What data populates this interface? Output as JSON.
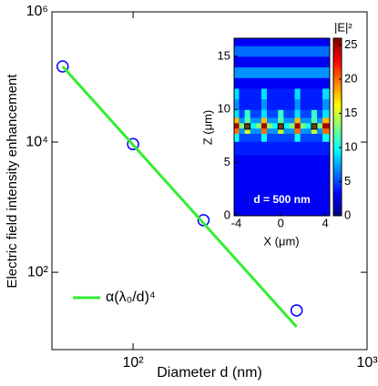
{
  "chart_data": [
    {
      "type": "scatter",
      "xlabel": "Diameter d (nm)",
      "ylabel": "Electric field intensity enhancement",
      "xscale": "log",
      "yscale": "log",
      "xlim": [
        45,
        1000
      ],
      "ylim": [
        6.5,
        1000000
      ],
      "xticks": [
        {
          "value": 100,
          "label": "10²"
        },
        {
          "value": 1000,
          "label": "10³"
        }
      ],
      "yticks": [
        {
          "value": 100,
          "label": "10²"
        },
        {
          "value": 10000,
          "label": "10⁴"
        },
        {
          "value": 1000000,
          "label": "10⁶"
        }
      ],
      "legend": "lower left",
      "series": [
        {
          "color": "#0000ff",
          "marker": "circle",
          "x": [
            50,
            100,
            200,
            500
          ],
          "values": [
            145000,
            9300,
            630,
            26
          ]
        },
        {
          "name": "α(λ₀/d)⁴",
          "color": "#33ee33",
          "line": true,
          "x": [
            50,
            500
          ],
          "values": [
            145000,
            14.5
          ]
        }
      ]
    },
    {
      "type": "heatmap",
      "annotation": "d = 500 nm",
      "xlabel": "X (μm)",
      "ylabel": "Z (μm)",
      "colorbar_label": "|E|²",
      "colormap": "jet",
      "xlim": [
        -4.2,
        4.4
      ],
      "ylim": [
        0,
        16.7
      ],
      "xticks": [
        -4,
        0,
        4
      ],
      "yticks": [
        0,
        5,
        10,
        15
      ],
      "clim": [
        0,
        26
      ],
      "cticks": [
        0,
        5,
        10,
        15,
        20,
        25
      ],
      "particles_x": [
        -3,
        0,
        3
      ],
      "particles_y": [
        8.4,
        8.4,
        8.4
      ],
      "x": [
        -4,
        -3.5,
        -3,
        -2.5,
        -2,
        -1.5,
        -1,
        -0.5,
        0,
        0.5,
        1,
        1.5,
        2,
        2.5,
        3,
        3.5,
        4
      ],
      "y": [
        1,
        3,
        5,
        6.5,
        7.5,
        8,
        8.5,
        9,
        9.5,
        10.5,
        11.5,
        12.5,
        13.5,
        14.5,
        15.5,
        16.5
      ],
      "values": [
        [
          3,
          3,
          3,
          3,
          3,
          3,
          3,
          3,
          3,
          3,
          3,
          3,
          3,
          3,
          3,
          3,
          3
        ],
        [
          3,
          3,
          3,
          3,
          3,
          3,
          3,
          3,
          3,
          3,
          3,
          3,
          3,
          3,
          3,
          3,
          3
        ],
        [
          3,
          3,
          3,
          3,
          3,
          3,
          3,
          3,
          3,
          3,
          3,
          3,
          3,
          3,
          3,
          3,
          3
        ],
        [
          4,
          4,
          4,
          4,
          4,
          4,
          4,
          4,
          4,
          4,
          4,
          4,
          4,
          4,
          4,
          4,
          4
        ],
        [
          10,
          5,
          5,
          5,
          5,
          10,
          5,
          5,
          5,
          5,
          5,
          10,
          5,
          5,
          5,
          5,
          10
        ],
        [
          20,
          7,
          15,
          7,
          7,
          20,
          7,
          7,
          15,
          7,
          7,
          20,
          7,
          7,
          15,
          7,
          20
        ],
        [
          25,
          13,
          22,
          10,
          13,
          25,
          13,
          10,
          22,
          10,
          13,
          25,
          13,
          10,
          22,
          13,
          25
        ],
        [
          18,
          7,
          12,
          7,
          7,
          18,
          7,
          7,
          12,
          7,
          7,
          18,
          7,
          7,
          12,
          7,
          18
        ],
        [
          9,
          5,
          11,
          5,
          5,
          9,
          5,
          5,
          11,
          5,
          5,
          9,
          5,
          5,
          11,
          5,
          9
        ],
        [
          7,
          4,
          4,
          4,
          4,
          7,
          4,
          4,
          4,
          4,
          4,
          7,
          4,
          4,
          4,
          4,
          7
        ],
        [
          9,
          4,
          4,
          4,
          4,
          9,
          4,
          4,
          4,
          4,
          4,
          9,
          4,
          4,
          4,
          4,
          9
        ],
        [
          3,
          3,
          3,
          3,
          3,
          3,
          3,
          3,
          3,
          3,
          3,
          3,
          3,
          3,
          3,
          3,
          3
        ],
        [
          7,
          7,
          7,
          7,
          7,
          7,
          7,
          7,
          7,
          7,
          7,
          7,
          7,
          7,
          7,
          7,
          7
        ],
        [
          3,
          3,
          3,
          3,
          3,
          3,
          3,
          3,
          3,
          3,
          3,
          3,
          3,
          3,
          3,
          3,
          3
        ],
        [
          6,
          6,
          6,
          6,
          6,
          6,
          6,
          6,
          6,
          6,
          6,
          6,
          6,
          6,
          6,
          6,
          6
        ],
        [
          3,
          3,
          3,
          3,
          3,
          3,
          3,
          3,
          3,
          3,
          3,
          3,
          3,
          3,
          3,
          3,
          3
        ]
      ]
    }
  ]
}
